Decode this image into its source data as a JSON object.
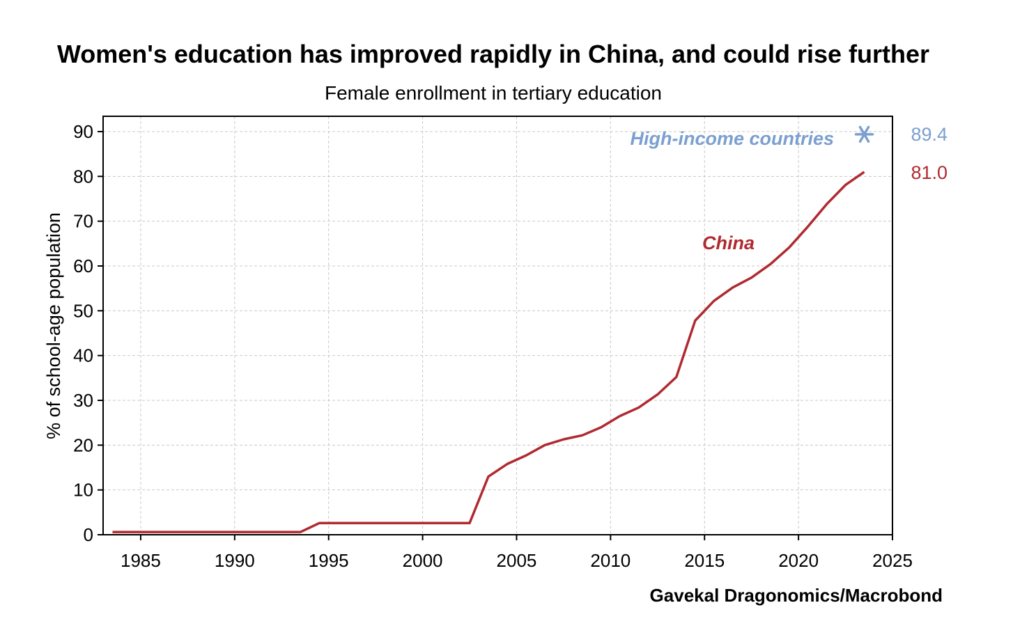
{
  "chart_data": {
    "type": "line",
    "title": "Women's education has improved rapidly in China, and could rise further",
    "subtitle": "Female enrollment in tertiary education",
    "ylabel": "% of school-age population",
    "xlabel": "",
    "xlim": [
      1983,
      2025
    ],
    "ylim": [
      0,
      93
    ],
    "x_ticks": [
      1985,
      1990,
      1995,
      2000,
      2005,
      2010,
      2015,
      2020,
      2025
    ],
    "y_ticks": [
      0,
      10,
      20,
      30,
      40,
      50,
      60,
      70,
      80,
      90
    ],
    "grid": true,
    "source": "Gavekal Dragonomics/Macrobond",
    "series": [
      {
        "name": "China",
        "color": "#b02a30",
        "end_label": "81.0",
        "x": [
          1983.5,
          1984.5,
          1985.5,
          1986.5,
          1987.5,
          1988.5,
          1989.5,
          1990.5,
          1991.5,
          1992.5,
          1993.5,
          1994.5,
          1995.5,
          1996.5,
          1997.5,
          1998.5,
          1999.5,
          2000.5,
          2001.5,
          2002.5,
          2003.5,
          2004.5,
          2005.5,
          2006.5,
          2007.5,
          2008.5,
          2009.5,
          2010.5,
          2011.5,
          2012.5,
          2013.5,
          2014.5,
          2015.5,
          2016.5,
          2017.5,
          2018.5,
          2019.5,
          2020.5,
          2021.5,
          2022.5,
          2023.5
        ],
        "y": [
          0.6,
          0.6,
          0.6,
          0.6,
          0.6,
          0.6,
          0.6,
          0.6,
          0.6,
          0.6,
          0.6,
          2.6,
          2.6,
          2.6,
          2.6,
          2.6,
          2.6,
          2.6,
          2.6,
          2.6,
          13.0,
          15.8,
          17.7,
          20.0,
          21.3,
          22.2,
          24.0,
          26.5,
          28.4,
          31.3,
          35.2,
          47.8,
          52.2,
          55.2,
          57.4,
          60.4,
          64.1,
          68.8,
          73.8,
          78.1,
          81.0
        ]
      },
      {
        "name": "High-income countries",
        "color": "#7b9fd0",
        "end_label": "89.4",
        "marker": "asterisk",
        "x": [
          2023.5
        ],
        "y": [
          89.4
        ]
      }
    ]
  }
}
